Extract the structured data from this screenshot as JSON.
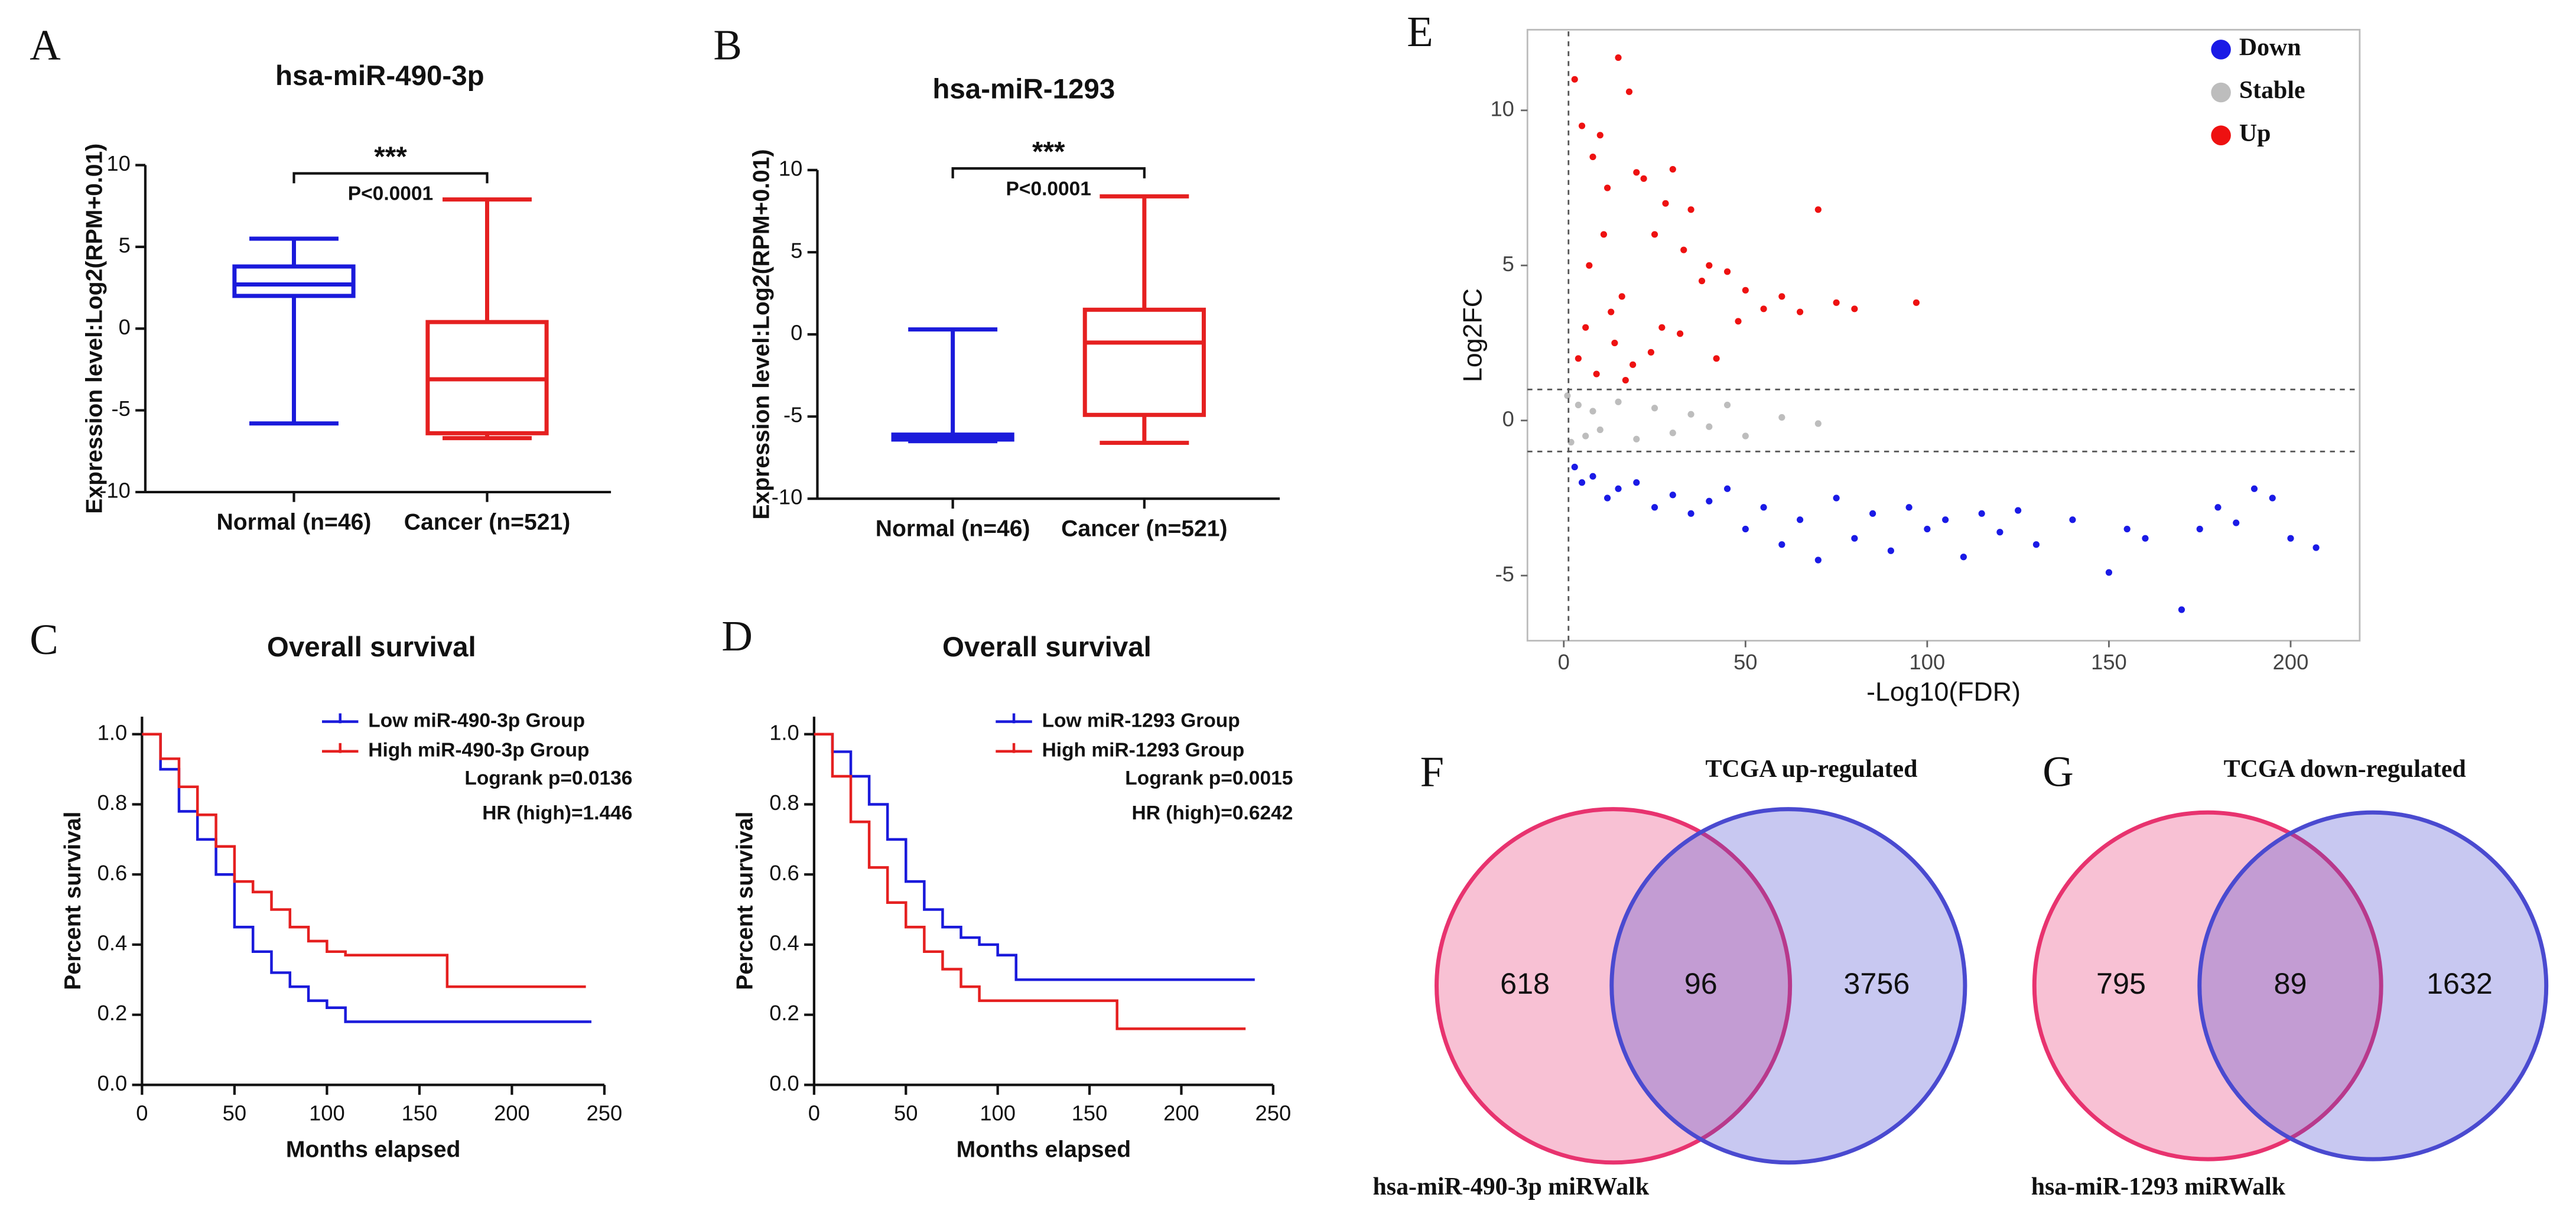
{
  "chart_data": [
    {
      "type": "box",
      "panel": "A",
      "title": "hsa-miR-490-3p",
      "y_label": "Expression level:Log2(RPM+0.01)",
      "categories": [
        "Normal (n=46)",
        "Cancer (n=521)"
      ],
      "boxes": [
        {
          "min": -5.8,
          "q1": 2.0,
          "median": 2.7,
          "q3": 3.8,
          "max": 5.5,
          "color": "#1a1adb"
        },
        {
          "min": -6.7,
          "q1": -6.4,
          "median": -3.1,
          "q3": 0.4,
          "max": 7.9,
          "color": "#e52020"
        }
      ],
      "ylim": [
        -10,
        10
      ],
      "yticks": [
        -10,
        -5,
        0,
        5,
        10
      ],
      "annotations": [
        "***",
        "P<0.0001"
      ]
    },
    {
      "type": "box",
      "panel": "B",
      "title": "hsa-miR-1293",
      "y_label": "Expression level:Log2(RPM+0.01)",
      "categories": [
        "Normal (n=46)",
        "Cancer (n=521)"
      ],
      "boxes": [
        {
          "min": -6.5,
          "q1": -6.4,
          "median": -6.3,
          "q3": -6.1,
          "max": 0.3,
          "color": "#1a1adb"
        },
        {
          "min": -6.6,
          "q1": -4.9,
          "median": -0.5,
          "q3": 1.5,
          "max": 8.4,
          "color": "#e52020"
        }
      ],
      "ylim": [
        -10,
        10
      ],
      "yticks": [
        -10,
        -5,
        0,
        5,
        10
      ],
      "annotations": [
        "***",
        "P<0.0001"
      ]
    },
    {
      "type": "line",
      "step": true,
      "panel": "C",
      "title": "Overall survival",
      "x_label": "Months elapsed",
      "y_label": "Percent survival",
      "series": [
        {
          "name": "Low miR-490-3p Group",
          "color": "#1a1adb",
          "x": [
            0,
            10,
            20,
            30,
            40,
            50,
            60,
            70,
            80,
            90,
            100,
            110,
            243
          ],
          "y": [
            1.0,
            0.9,
            0.78,
            0.7,
            0.6,
            0.45,
            0.38,
            0.32,
            0.28,
            0.24,
            0.22,
            0.18,
            0.18
          ]
        },
        {
          "name": "High miR-490-3p Group",
          "color": "#e52020",
          "x": [
            0,
            10,
            20,
            30,
            40,
            50,
            60,
            70,
            80,
            90,
            100,
            110,
            165,
            240
          ],
          "y": [
            1.0,
            0.93,
            0.85,
            0.77,
            0.68,
            0.58,
            0.55,
            0.5,
            0.45,
            0.41,
            0.38,
            0.37,
            0.28,
            0.28
          ]
        }
      ],
      "xlim": [
        0,
        250
      ],
      "xticks": [
        0,
        50,
        100,
        150,
        200,
        250
      ],
      "ylim": [
        0,
        1.05
      ],
      "yticks": [
        {
          "value": 0,
          "label": "0.0"
        },
        0.2,
        0.4,
        0.6,
        0.8,
        {
          "value": 1,
          "label": "1.0"
        }
      ],
      "annotations": [
        "Logrank p=0.0136",
        "HR (high)=1.446"
      ]
    },
    {
      "type": "line",
      "step": true,
      "panel": "D",
      "title": "Overall survival",
      "x_label": "Months elapsed",
      "y_label": "Percent survival",
      "series": [
        {
          "name": "Low miR-1293 Group",
          "color": "#1a1adb",
          "x": [
            0,
            10,
            20,
            30,
            40,
            50,
            60,
            70,
            80,
            90,
            100,
            110,
            240
          ],
          "y": [
            1.0,
            0.95,
            0.88,
            0.8,
            0.7,
            0.58,
            0.5,
            0.45,
            0.42,
            0.4,
            0.37,
            0.3,
            0.3
          ]
        },
        {
          "name": "High miR-1293 Group",
          "color": "#e52020",
          "x": [
            0,
            10,
            20,
            30,
            40,
            50,
            60,
            70,
            80,
            90,
            165,
            235
          ],
          "y": [
            1.0,
            0.88,
            0.75,
            0.62,
            0.52,
            0.45,
            0.38,
            0.33,
            0.28,
            0.24,
            0.16,
            0.16
          ]
        }
      ],
      "xlim": [
        0,
        250
      ],
      "xticks": [
        0,
        50,
        100,
        150,
        200,
        250
      ],
      "ylim": [
        0,
        1.05
      ],
      "yticks": [
        {
          "value": 0,
          "label": "0.0"
        },
        0.2,
        0.4,
        0.6,
        0.8,
        {
          "value": 1,
          "label": "1.0"
        }
      ],
      "annotations": [
        "Logrank p=0.0015",
        "HR (high)=0.6242"
      ]
    },
    {
      "type": "scatter",
      "panel": "E",
      "x_label": "-Log10(FDR)",
      "y_label": "Log2FC",
      "series": [
        {
          "name": "Down",
          "color": "#1a1ae6",
          "x": [
            3,
            5,
            8,
            12,
            15,
            20,
            25,
            30,
            35,
            40,
            45,
            50,
            55,
            60,
            65,
            70,
            75,
            80,
            85,
            90,
            95,
            100,
            105,
            110,
            115,
            120,
            125,
            130,
            140,
            150,
            155,
            160,
            170,
            175,
            180,
            185,
            190,
            195,
            200,
            207
          ],
          "y": [
            -1.5,
            -2,
            -1.8,
            -2.5,
            -2.2,
            -2,
            -2.8,
            -2.4,
            -3,
            -2.6,
            -2.2,
            -3.5,
            -2.8,
            -4,
            -3.2,
            -4.5,
            -2.5,
            -3.8,
            -3,
            -4.2,
            -2.8,
            -3.5,
            -3.2,
            -4.4,
            -3,
            -3.6,
            -2.9,
            -4,
            -3.2,
            -4.9,
            -3.5,
            -3.8,
            -6.1,
            -3.5,
            -2.8,
            -3.3,
            -2.2,
            -2.5,
            -3.8,
            -4.1
          ]
        },
        {
          "name": "Stable",
          "color": "#bdbdbd",
          "x": [
            1,
            2,
            4,
            6,
            8,
            10,
            15,
            20,
            25,
            30,
            35,
            40,
            45,
            50,
            60,
            70
          ],
          "y": [
            0.8,
            -0.7,
            0.5,
            -0.5,
            0.3,
            -0.3,
            0.6,
            -0.6,
            0.4,
            -0.4,
            0.2,
            -0.2,
            0.5,
            -0.5,
            0.1,
            -0.1
          ]
        },
        {
          "name": "Up",
          "color": "#ee1111",
          "x": [
            3,
            5,
            8,
            10,
            12,
            15,
            18,
            20,
            22,
            25,
            28,
            30,
            33,
            35,
            38,
            40,
            45,
            50,
            55,
            60,
            65,
            70,
            75,
            80,
            97,
            4,
            6,
            9,
            14,
            16,
            19,
            24,
            27,
            32,
            42,
            48,
            7,
            11,
            13,
            17
          ],
          "y": [
            11,
            9.5,
            8.5,
            9.2,
            7.5,
            11.7,
            10.6,
            8,
            7.8,
            6,
            7,
            8.1,
            5.5,
            6.8,
            4.5,
            5,
            4.8,
            4.2,
            3.6,
            4,
            3.5,
            6.8,
            3.8,
            3.6,
            3.8,
            2,
            3,
            1.5,
            2.5,
            4,
            1.8,
            2.2,
            3,
            2.8,
            2,
            3.2,
            5,
            6,
            3.5,
            1.3
          ]
        }
      ],
      "xlim": [
        -10,
        219
      ],
      "xticks": [
        0,
        50,
        100,
        150,
        200
      ],
      "ylim": [
        -7.1,
        12.6
      ],
      "yticks": [
        -5,
        0,
        5,
        10
      ],
      "vline": 1.3,
      "hlines": [
        -1,
        1
      ],
      "legend": "top-right"
    },
    {
      "type": "venn",
      "panel": "F",
      "sets": [
        "hsa-miR-490-3p miRWalk",
        "TCGA up-regulated"
      ],
      "values": [
        618,
        96,
        3756
      ],
      "colors": [
        "#e8336f",
        "#4a4ad0"
      ]
    },
    {
      "type": "venn",
      "panel": "G",
      "sets": [
        "hsa-miR-1293 miRWalk",
        "TCGA down-regulated"
      ],
      "values": [
        795,
        89,
        1632
      ],
      "colors": [
        "#e8336f",
        "#4a4ad0"
      ]
    }
  ]
}
